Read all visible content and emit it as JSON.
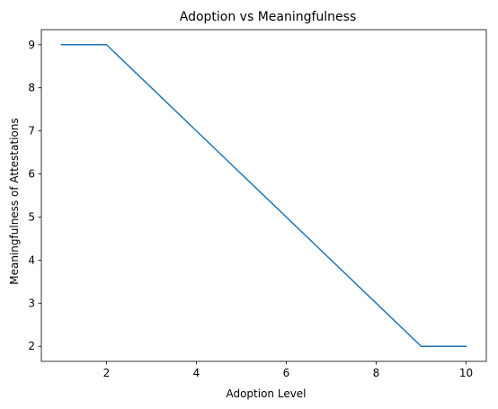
{
  "chart_data": {
    "type": "line",
    "title": "Adoption vs Meaningfulness",
    "xlabel": "Adoption Level",
    "ylabel": "Meaningfulness of Attestations",
    "xlim": [
      0.55,
      10.45
    ],
    "ylim": [
      1.65,
      9.35
    ],
    "xticks": [
      2,
      4,
      6,
      8,
      10
    ],
    "yticks": [
      2,
      3,
      4,
      5,
      6,
      7,
      8,
      9
    ],
    "grid": false,
    "series": [
      {
        "color": "#1f77b4",
        "x": [
          1,
          2,
          3,
          4,
          5,
          6,
          7,
          8,
          9,
          10
        ],
        "y": [
          9,
          9,
          8,
          7,
          6,
          5,
          4,
          3,
          2,
          2
        ]
      }
    ]
  }
}
